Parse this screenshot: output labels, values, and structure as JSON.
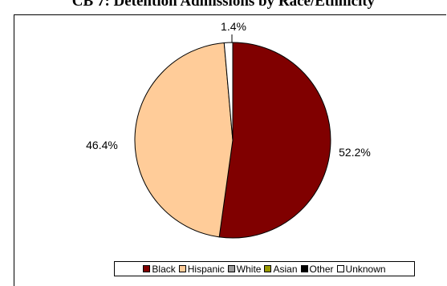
{
  "chart_data": {
    "type": "pie",
    "title": "CB 7: Detention Admissions by Race/Ethnicity",
    "start_angle_deg": 0,
    "slices": [
      {
        "name": "Black",
        "value": 52.2,
        "label": "52.2%",
        "color": "#800000"
      },
      {
        "name": "Hispanic",
        "value": 46.4,
        "label": "46.4%",
        "color": "#FFCC99"
      },
      {
        "name": "White",
        "value": 0,
        "label": "",
        "color": "#999999"
      },
      {
        "name": "Asian",
        "value": 0,
        "label": "",
        "color": "#999900"
      },
      {
        "name": "Other",
        "value": 0,
        "label": "",
        "color": "#000000"
      },
      {
        "name": "Unknown",
        "value": 1.4,
        "label": "1.4%",
        "color": "#FFFFFF"
      }
    ],
    "legend": {
      "placement": "bottom",
      "items": [
        "Black",
        "Hispanic",
        "White",
        "Asian",
        "Other",
        "Unknown"
      ]
    },
    "grid": false
  }
}
